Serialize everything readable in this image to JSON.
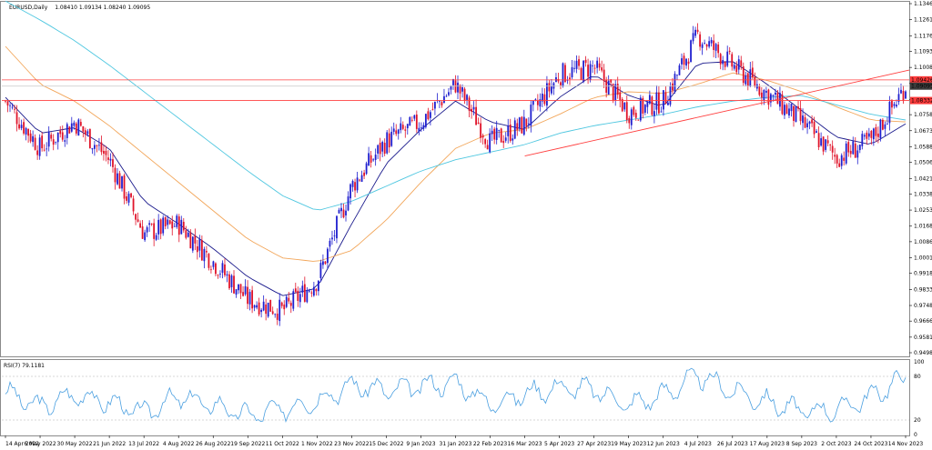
{
  "header": {
    "symbol": "EURUSD,Daily",
    "ohlc": "1.08410 1.09134 1.08240 1.09095"
  },
  "rsi": {
    "label": "RSI(7) 79.1181",
    "levels": [
      80,
      20
    ],
    "scale": [
      "100",
      "80",
      "20",
      "0"
    ]
  },
  "y_axis": {
    "ticks": [
      "1.13460",
      "1.12610",
      "1.11760",
      "1.10935",
      "1.10085",
      "1.09235",
      "1.08385",
      "1.07585",
      "1.06735",
      "1.05885",
      "1.05060",
      "1.04210",
      "1.03385",
      "1.02535",
      "1.01685",
      "1.00860",
      "1.00010",
      "0.99185",
      "0.98335",
      "0.97485",
      "0.96660",
      "0.95810",
      "0.94985"
    ],
    "price_tags": [
      {
        "value": "1.09426",
        "color": "#ff3b3b"
      },
      {
        "value": "1.09095",
        "color": "#3b3b3b"
      },
      {
        "value": "1.08332",
        "color": "#ff3b3b"
      }
    ]
  },
  "x_axis": {
    "ticks": [
      "14 Apr 2022",
      "6 May 2022",
      "30 May 2022",
      "21 Jun 2022",
      "13 Jul 2022",
      "4 Aug 2022",
      "26 Aug 2022",
      "19 Sep 2022",
      "11 Oct 2022",
      "1 Nov 2022",
      "23 Nov 2022",
      "15 Dec 2022",
      "9 Jan 2023",
      "31 Jan 2023",
      "22 Feb 2023",
      "16 Mar 2023",
      "5 Apr 2023",
      "27 Apr 2023",
      "19 May 2023",
      "12 Jun 2023",
      "4 Jul 2023",
      "26 Jul 2023",
      "17 Aug 2023",
      "8 Sep 2023",
      "2 Oct 2023",
      "24 Oct 2023",
      "14 Nov 2023"
    ]
  },
  "colors": {
    "bull": "#1f1fcf",
    "bear": "#e0142a",
    "ma_fast": "#1a1a8c",
    "ma_mid": "#f2a65a",
    "ma_slow": "#4fc7e0",
    "resistance": "#ff4040",
    "rsi_line": "#4a9fe0"
  },
  "chart_data": {
    "type": "line",
    "description_hint": "",
    "title": "EURUSD,Daily",
    "ylim": [
      0.94985,
      1.1346
    ],
    "x": [
      "14 Apr 2022",
      "6 May 2022",
      "30 May 2022",
      "21 Jun 2022",
      "13 Jul 2022",
      "4 Aug 2022",
      "26 Aug 2022",
      "19 Sep 2022",
      "11 Oct 2022",
      "1 Nov 2022",
      "23 Nov 2022",
      "15 Dec 2022",
      "9 Jan 2023",
      "31 Jan 2023",
      "22 Feb 2023",
      "16 Mar 2023",
      "5 Apr 2023",
      "27 Apr 2023",
      "19 May 2023",
      "12 Jun 2023",
      "4 Jul 2023",
      "26 Jul 2023",
      "17 Aug 2023",
      "8 Sep 2023",
      "2 Oct 2023",
      "24 Oct 2023",
      "14 Nov 2023"
    ],
    "series": [
      {
        "values": [
          1.083,
          1.058,
          1.072,
          1.052,
          1.013,
          1.018,
          0.998,
          0.978,
          0.972,
          0.988,
          1.038,
          1.062,
          1.072,
          1.092,
          1.061,
          1.071,
          1.097,
          1.101,
          1.077,
          1.083,
          1.118,
          1.102,
          1.087,
          1.072,
          1.053,
          1.062,
          1.091
        ]
      },
      {
        "values": [
          1.085,
          1.066,
          1.069,
          1.058,
          1.03,
          1.018,
          1.005,
          0.99,
          0.98,
          0.984,
          1.018,
          1.05,
          1.068,
          1.083,
          1.072,
          1.068,
          1.085,
          1.097,
          1.086,
          1.08,
          1.103,
          1.104,
          1.092,
          1.078,
          1.064,
          1.06,
          1.071
        ]
      },
      {
        "values": [
          1.112,
          1.092,
          1.083,
          1.07,
          1.055,
          1.04,
          1.025,
          1.01,
          1.0,
          0.998,
          1.004,
          1.02,
          1.04,
          1.058,
          1.066,
          1.068,
          1.076,
          1.085,
          1.088,
          1.087,
          1.092,
          1.098,
          1.094,
          1.088,
          1.08,
          1.073,
          1.072
        ]
      },
      {
        "values": [
          1.136,
          1.126,
          1.115,
          1.102,
          1.088,
          1.074,
          1.06,
          1.046,
          1.033,
          1.025,
          1.03,
          1.038,
          1.046,
          1.052,
          1.056,
          1.06,
          1.066,
          1.07,
          1.073,
          1.076,
          1.08,
          1.083,
          1.085,
          1.086,
          1.081,
          1.076,
          1.073
        ]
      }
    ],
    "hlines": [
      1.09426,
      1.09095,
      1.08332
    ],
    "trendline": {
      "x": [
        "16 Mar 2023",
        "14 Nov 2023"
      ],
      "y": [
        1.054,
        1.099
      ]
    },
    "rsi_values": [
      58,
      38,
      55,
      44,
      30,
      52,
      40,
      26,
      35,
      47,
      68,
      60,
      66,
      72,
      42,
      56,
      65,
      62,
      40,
      55,
      81,
      60,
      45,
      32,
      34,
      52,
      79
    ]
  }
}
